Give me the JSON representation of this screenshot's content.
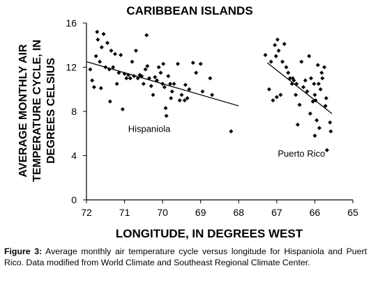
{
  "chart_data": {
    "type": "scatter",
    "title": "CARIBBEAN ISLANDS",
    "xlabel": "LONGITUDE, IN DEGREES WEST",
    "ylabel": "AVERAGE MONTHLY AIR TEMPERATURE CYCLE, IN DEGREES CELSIUS",
    "ylabel_lines": [
      "AVERAGE MONTHLY AIR",
      "TEMPERATURE CYCLE, IN",
      "DEGREES CELSIUS"
    ],
    "xlim": [
      72,
      65
    ],
    "ylim": [
      0,
      16
    ],
    "x_ticks": [
      72,
      71,
      70,
      69,
      68,
      67,
      66,
      65
    ],
    "y_ticks": [
      0,
      4,
      8,
      12,
      16
    ],
    "grid": false,
    "marker_color": "#000000",
    "series": [
      {
        "name": "Hispaniola",
        "points": [
          [
            71.9,
            11.8
          ],
          [
            71.85,
            10.8
          ],
          [
            71.8,
            10.2
          ],
          [
            71.75,
            13.0
          ],
          [
            71.72,
            15.2
          ],
          [
            71.7,
            14.5
          ],
          [
            71.65,
            12.5
          ],
          [
            71.62,
            10.1
          ],
          [
            71.6,
            13.8
          ],
          [
            71.55,
            15.0
          ],
          [
            71.5,
            12.0
          ],
          [
            71.45,
            14.2
          ],
          [
            71.4,
            11.8
          ],
          [
            71.38,
            8.9
          ],
          [
            71.35,
            13.5
          ],
          [
            71.3,
            12.0
          ],
          [
            71.25,
            13.2
          ],
          [
            71.2,
            10.5
          ],
          [
            71.15,
            11.5
          ],
          [
            71.1,
            13.1
          ],
          [
            71.05,
            8.2
          ],
          [
            71.0,
            11.4
          ],
          [
            70.95,
            11.0
          ],
          [
            70.9,
            11.3
          ],
          [
            70.85,
            11.0
          ],
          [
            70.8,
            12.5
          ],
          [
            70.75,
            11.2
          ],
          [
            70.7,
            13.5
          ],
          [
            70.65,
            11.0
          ],
          [
            70.6,
            11.3
          ],
          [
            70.55,
            11.2
          ],
          [
            70.5,
            10.5
          ],
          [
            70.45,
            11.8
          ],
          [
            70.42,
            14.9
          ],
          [
            70.4,
            12.1
          ],
          [
            70.35,
            11.0
          ],
          [
            70.3,
            10.3
          ],
          [
            70.25,
            9.5
          ],
          [
            70.2,
            11.1
          ],
          [
            70.15,
            10.8
          ],
          [
            70.1,
            12.0
          ],
          [
            70.05,
            11.5
          ],
          [
            70.0,
            10.5
          ],
          [
            69.98,
            12.3
          ],
          [
            69.95,
            10.2
          ],
          [
            69.92,
            8.3
          ],
          [
            69.9,
            7.6
          ],
          [
            69.85,
            11.2
          ],
          [
            69.8,
            10.5
          ],
          [
            69.78,
            9.2
          ],
          [
            69.75,
            9.8
          ],
          [
            69.7,
            10.5
          ],
          [
            69.6,
            12.3
          ],
          [
            69.55,
            9.0
          ],
          [
            69.5,
            9.5
          ],
          [
            69.42,
            9.0
          ],
          [
            69.4,
            10.4
          ],
          [
            69.35,
            9.2
          ],
          [
            69.3,
            10.0
          ],
          [
            69.2,
            12.4
          ],
          [
            69.12,
            11.5
          ],
          [
            69.0,
            12.3
          ],
          [
            68.95,
            9.8
          ],
          [
            68.75,
            11.0
          ],
          [
            68.7,
            9.5
          ],
          [
            68.2,
            6.2
          ]
        ]
      },
      {
        "name": "Puerto Rico",
        "points": [
          [
            67.3,
            13.1
          ],
          [
            67.2,
            10.0
          ],
          [
            67.15,
            12.5
          ],
          [
            67.1,
            9.0
          ],
          [
            67.05,
            14.0
          ],
          [
            67.02,
            13.0
          ],
          [
            67.0,
            9.3
          ],
          [
            66.98,
            14.5
          ],
          [
            66.95,
            13.5
          ],
          [
            66.9,
            9.5
          ],
          [
            66.85,
            12.5
          ],
          [
            66.8,
            14.1
          ],
          [
            66.75,
            12.0
          ],
          [
            66.7,
            11.5
          ],
          [
            66.65,
            11.0
          ],
          [
            66.6,
            10.5
          ],
          [
            66.58,
            11.0
          ],
          [
            66.55,
            10.8
          ],
          [
            66.5,
            9.5
          ],
          [
            66.48,
            10.5
          ],
          [
            66.45,
            6.8
          ],
          [
            66.4,
            8.6
          ],
          [
            66.35,
            12.5
          ],
          [
            66.3,
            10.2
          ],
          [
            66.25,
            10.8
          ],
          [
            66.2,
            9.8
          ],
          [
            66.15,
            13.0
          ],
          [
            66.12,
            7.8
          ],
          [
            66.1,
            11.0
          ],
          [
            66.05,
            8.9
          ],
          [
            66.02,
            10.5
          ],
          [
            66.0,
            9.5
          ],
          [
            66.0,
            5.8
          ],
          [
            65.98,
            9.0
          ],
          [
            65.95,
            7.2
          ],
          [
            65.92,
            12.2
          ],
          [
            65.9,
            10.5
          ],
          [
            65.88,
            6.5
          ],
          [
            65.85,
            10.0
          ],
          [
            65.82,
            11.5
          ],
          [
            65.8,
            11.0
          ],
          [
            65.75,
            12.0
          ],
          [
            65.72,
            8.5
          ],
          [
            65.7,
            9.2
          ],
          [
            65.68,
            4.5
          ],
          [
            65.6,
            7.0
          ],
          [
            65.58,
            6.2
          ]
        ]
      }
    ],
    "trend_lines": [
      {
        "series": "Hispaniola",
        "from": [
          72.0,
          12.5
        ],
        "to": [
          68.0,
          8.5
        ]
      },
      {
        "series": "Puerto Rico",
        "from": [
          67.25,
          12.4
        ],
        "to": [
          65.55,
          7.8
        ]
      }
    ],
    "annotations": [
      {
        "text": "Hispaniola",
        "x": 70.35,
        "y": 6.15
      },
      {
        "text": "Puerto Rico",
        "x": 66.35,
        "y": 3.9
      }
    ]
  },
  "caption": {
    "label": "Figure 3:",
    "text": " Average monthly air temperature cycle versus longitude for Hispaniola and Puert Rico. Data modified from World Climate and Southeast Regional Climate Center."
  }
}
